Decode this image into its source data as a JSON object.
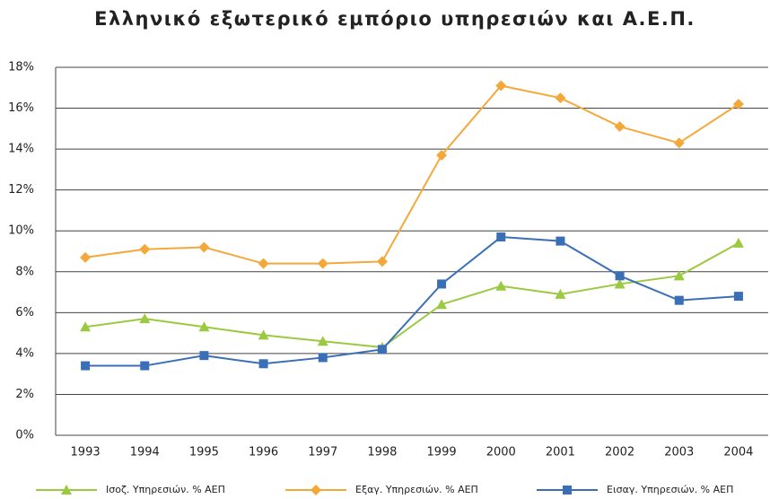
{
  "chart_data": {
    "type": "line",
    "title": "Ελληνικό εξωτερικό εμπόριο υπηρεσιών και Α.Ε.Π.",
    "categories": [
      "1993",
      "1994",
      "1995",
      "1996",
      "1997",
      "1998",
      "1999",
      "2000",
      "2001",
      "2002",
      "2003",
      "2004"
    ],
    "series": [
      {
        "name": "Ισοζ. Υπηρεσιών. % ΑΕΠ",
        "color": "#9bc93f",
        "marker": "triangle",
        "values": [
          5.3,
          5.7,
          5.3,
          4.9,
          4.6,
          4.3,
          6.4,
          7.3,
          6.9,
          7.4,
          7.8,
          9.4
        ]
      },
      {
        "name": "Εξαγ. Υπηρεσιών. % ΑΕΠ",
        "color": "#f5a83a",
        "marker": "diamond",
        "values": [
          8.7,
          9.1,
          9.2,
          8.4,
          8.4,
          8.5,
          13.7,
          17.1,
          16.5,
          15.1,
          14.3,
          16.2
        ]
      },
      {
        "name": "Εισαγ. Υπηρεσιών. % ΑΕΠ",
        "color": "#3a6fb8",
        "marker": "square",
        "values": [
          3.4,
          3.4,
          3.9,
          3.5,
          3.8,
          4.2,
          7.4,
          9.7,
          9.5,
          7.8,
          6.6,
          6.8
        ]
      }
    ],
    "ylim": [
      0,
      18
    ],
    "yticks": [
      {
        "value": 0,
        "label": "0%"
      },
      {
        "value": 2,
        "label": "2%"
      },
      {
        "value": 4,
        "label": "4%"
      },
      {
        "value": 6,
        "label": "6%"
      },
      {
        "value": 8,
        "label": "8%"
      },
      {
        "value": 10,
        "label": "10%"
      },
      {
        "value": 12,
        "label": "12%"
      },
      {
        "value": 14,
        "label": "14%"
      },
      {
        "value": 16,
        "label": "16%"
      },
      {
        "value": 18,
        "label": "18%"
      }
    ],
    "grid": true,
    "legend": "bottom"
  }
}
